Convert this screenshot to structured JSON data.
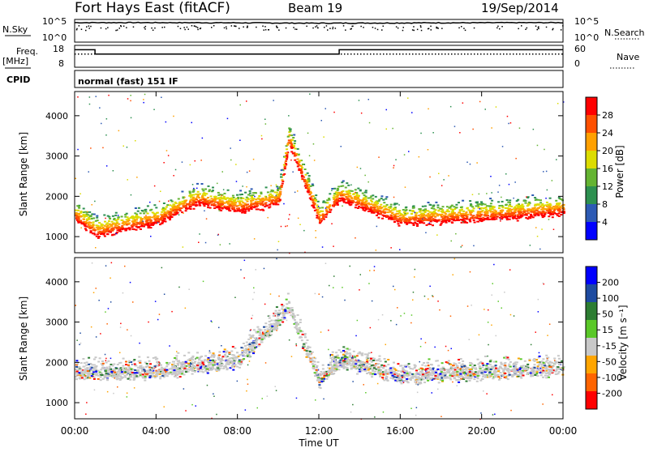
{
  "header": {
    "station": "Fort Hays East (fitACF)",
    "beam": "Beam 19",
    "date": "19/Sep/2014"
  },
  "colors": {
    "power_scale": [
      "#0000ff",
      "#2d5ab4",
      "#2d9050",
      "#64b432",
      "#dcdc00",
      "#ffa000",
      "#ff5000",
      "#ff0000"
    ],
    "velocity_scale": [
      "#0000ff",
      "#1e4ba0",
      "#2d7d32",
      "#5ac828",
      "#c8c8c8",
      "#ffa500",
      "#ff6400",
      "#ff0000"
    ],
    "ground_scatter": "#c8c8c8"
  },
  "chart_data": [
    {
      "type": "line",
      "name": "noise-panel",
      "left_labels": [
        "N.Sky",
        "10^5",
        "10^0"
      ],
      "right_labels": [
        "10^5",
        "10^0",
        "N.Search"
      ],
      "y_scale": "log",
      "ylim": [
        1,
        100000
      ],
      "x": [
        "00:00",
        "04:00",
        "08:00",
        "12:00",
        "16:00",
        "20:00",
        "00:00"
      ],
      "series": [
        {
          "values": [
            20000,
            20000,
            18000,
            15000,
            17000,
            19000,
            20000
          ]
        }
      ]
    },
    {
      "type": "line",
      "name": "frequency-nave-panel",
      "left_labels": [
        "Freq.",
        "[MHz]",
        "18",
        "8"
      ],
      "right_labels": [
        "60",
        "0",
        "Nave"
      ],
      "ylim": [
        8,
        18
      ],
      "series": [
        {
          "x": [
            0,
            1.0,
            1.0,
            13.0,
            13.0,
            24
          ],
          "values": [
            16,
            16,
            14,
            14,
            16,
            16
          ]
        },
        {
          "x": [
            0,
            24
          ],
          "values": [
            14,
            14
          ]
        }
      ]
    },
    {
      "type": "table",
      "name": "cpid",
      "label": "CPID",
      "value": "normal (fast) 151 IF"
    },
    {
      "type": "heatmap",
      "name": "power",
      "ylabel": "Slant Range [km]",
      "yticks": [
        "1000",
        "2000",
        "3000",
        "4000"
      ],
      "ylim": [
        600,
        4600
      ],
      "xlim": [
        0,
        24
      ],
      "colorbar_label": "Power [dB]",
      "colorbar_ticks": [
        "4",
        "8",
        "12",
        "16",
        "20",
        "24",
        "28"
      ],
      "bands": [
        {
          "x": [
            0,
            1,
            2,
            4,
            6,
            8,
            10,
            10.5,
            12,
            13,
            16,
            20,
            24
          ],
          "y": [
            1500,
            1100,
            1200,
            1400,
            1900,
            1700,
            1900,
            3400,
            1400,
            2000,
            1400,
            1500,
            1650
          ]
        }
      ]
    },
    {
      "type": "heatmap",
      "name": "velocity",
      "ylabel": "Slant Range [km]",
      "yticks": [
        "1000",
        "2000",
        "3000",
        "4000"
      ],
      "ylim": [
        600,
        4600
      ],
      "xlim": [
        0,
        24
      ],
      "xticks": [
        "00:00",
        "04:00",
        "08:00",
        "12:00",
        "16:00",
        "20:00",
        "00:00"
      ],
      "xlabel": "Time UT",
      "colorbar_label": "Velocity [m s⁻¹]",
      "colorbar_ticks": [
        "200",
        "100",
        "50",
        "15",
        "-15",
        "-50",
        "-100",
        "-200"
      ],
      "bands": [
        {
          "x": [
            0,
            4,
            8,
            10.5,
            12,
            13,
            16,
            20,
            24
          ],
          "y": [
            1700,
            1700,
            2000,
            3300,
            1500,
            2000,
            1600,
            1700,
            1800
          ]
        }
      ]
    }
  ]
}
